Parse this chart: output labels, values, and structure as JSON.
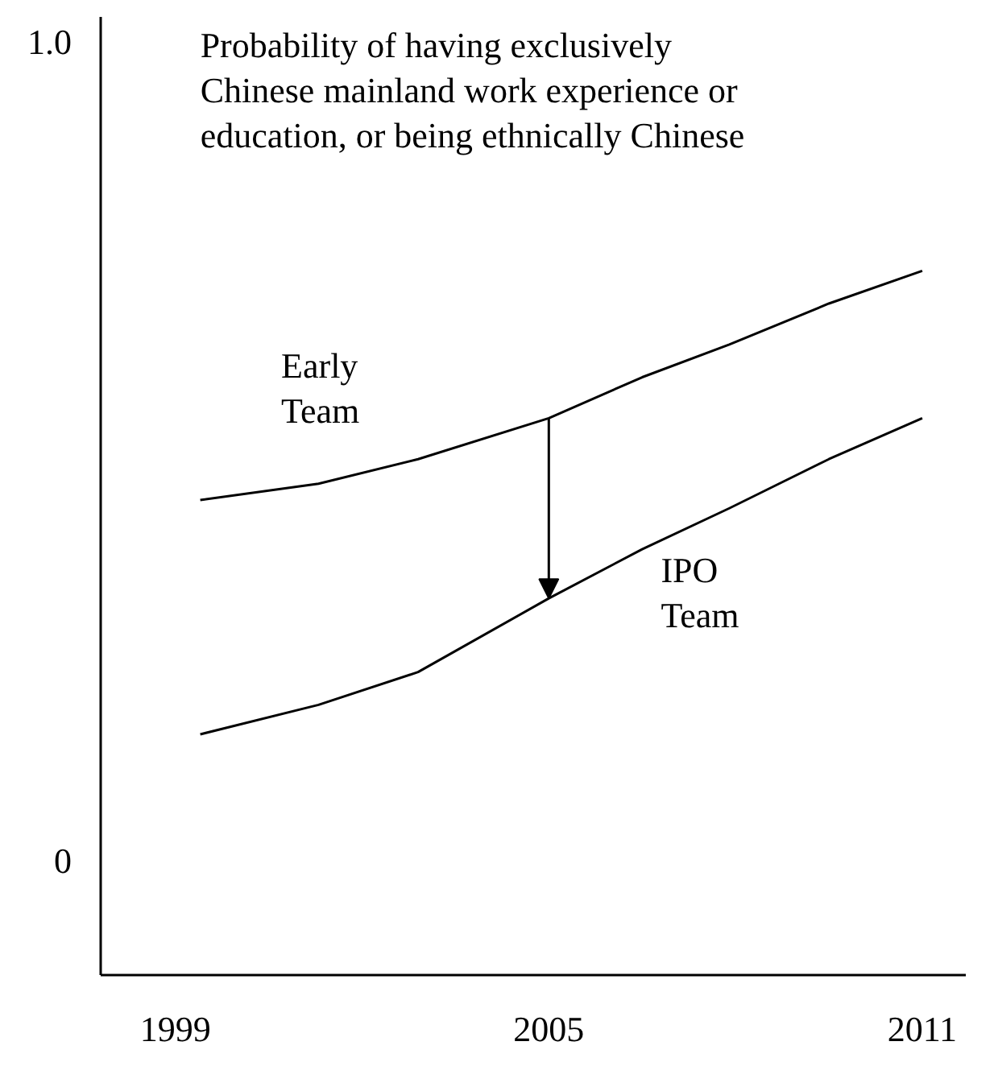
{
  "chart_data": {
    "type": "line",
    "title": "Probability of having exclusively\nChinese mainland work experience or\neducation, or being ethnically Chinese",
    "xlim": [
      1997.8,
      2011.7
    ],
    "ylim": [
      -0.14,
      1.03
    ],
    "xticks": [
      1999,
      2005,
      2011
    ],
    "yticks": [
      0,
      {
        "value": 1,
        "label": "1.0"
      }
    ],
    "grid": false,
    "marker": "none",
    "line_style": "solid",
    "series": [
      {
        "name": "Early\nTeam",
        "color": "#000000",
        "x": [
          1999.4,
          2001.3,
          2002.9,
          2005,
          2006.5,
          2007.9,
          2009.5,
          2011
        ],
        "values": [
          0.44,
          0.46,
          0.49,
          0.54,
          0.59,
          0.63,
          0.68,
          0.72
        ]
      },
      {
        "name": "IPO\nTeam",
        "color": "#000000",
        "x": [
          1999.4,
          2001.3,
          2002.9,
          2005,
          2006.5,
          2007.9,
          2009.5,
          2011
        ],
        "values": [
          0.154,
          0.19,
          0.23,
          0.32,
          0.38,
          0.43,
          0.49,
          0.54
        ]
      }
    ]
  }
}
